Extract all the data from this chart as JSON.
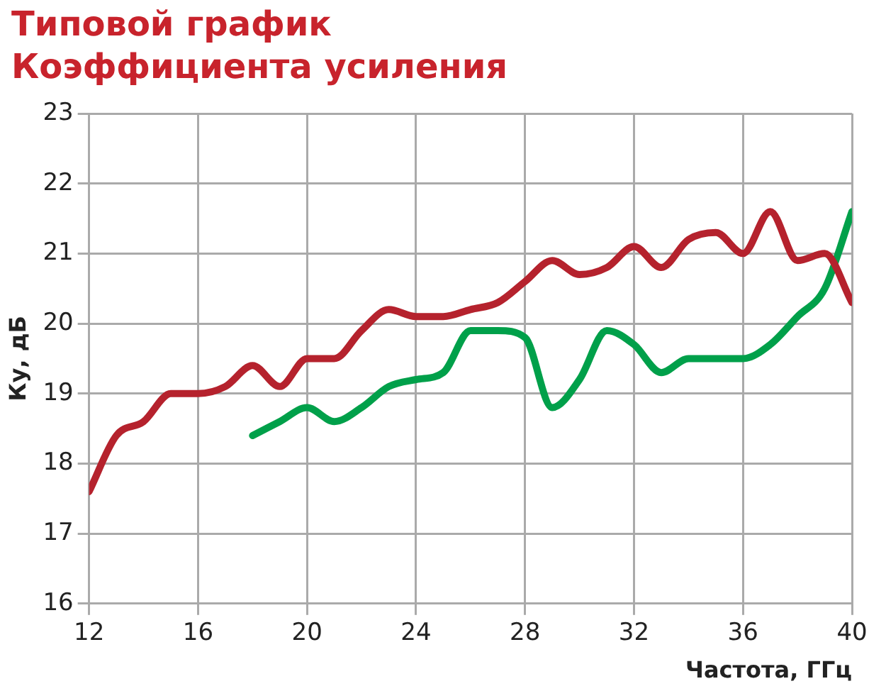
{
  "chart_data": {
    "type": "line",
    "title": "Типовой график\nКоэффициента усиления",
    "xlabel": "Частота, ГГц",
    "ylabel": "Ку, дБ",
    "xlim": [
      12,
      40
    ],
    "xticks": [
      12,
      16,
      20,
      24,
      28,
      32,
      36,
      40
    ],
    "ylim": [
      16,
      23
    ],
    "yticks": [
      16,
      17,
      18,
      19,
      20,
      21,
      22,
      23
    ],
    "grid": true,
    "marker": "none",
    "line_style": "solid",
    "series": [
      {
        "color": "#b5222d",
        "x": [
          12,
          13,
          14,
          15,
          16,
          17,
          18,
          19,
          20,
          21,
          22,
          23,
          24,
          25,
          26,
          27,
          28,
          29,
          30,
          31,
          32,
          33,
          34,
          35,
          36,
          37,
          38,
          39,
          40
        ],
        "values": [
          17.6,
          18.4,
          18.6,
          19.0,
          19.0,
          19.1,
          19.4,
          19.1,
          19.5,
          19.5,
          19.9,
          20.2,
          20.1,
          20.1,
          20.2,
          20.3,
          20.6,
          20.9,
          20.7,
          20.8,
          21.1,
          20.8,
          21.2,
          21.3,
          21.0,
          21.6,
          20.9,
          21.0,
          20.3
        ]
      },
      {
        "color": "#00a04a",
        "x": [
          18,
          19,
          20,
          21,
          22,
          23,
          24,
          25,
          26,
          27,
          28,
          29,
          30,
          31,
          32,
          33,
          34,
          35,
          36,
          37,
          38,
          39,
          40
        ],
        "values": [
          18.4,
          18.6,
          18.8,
          18.6,
          18.8,
          19.1,
          19.2,
          19.3,
          19.9,
          19.9,
          19.8,
          18.8,
          19.2,
          19.9,
          19.7,
          19.3,
          19.5,
          19.5,
          19.5,
          19.7,
          20.1,
          20.5,
          21.6
        ]
      }
    ]
  }
}
